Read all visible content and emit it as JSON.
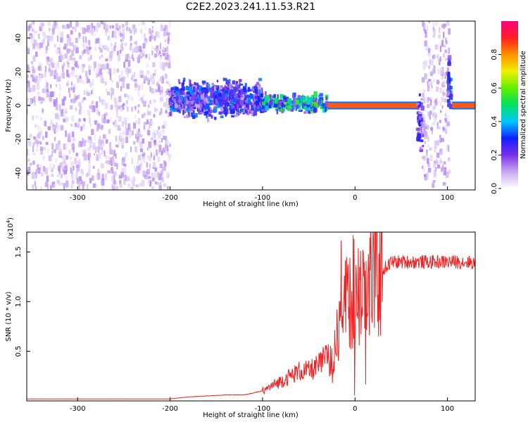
{
  "figure": {
    "title": "C2E2.2023.241.11.53.R21"
  },
  "chart_data": [
    {
      "type": "heatmap",
      "title": "C2E2.2023.241.11.53.R21",
      "xlabel": "Height of straight line (km)",
      "ylabel": "Frequency (Hz)",
      "xlim": [
        -355,
        130
      ],
      "ylim": [
        -50,
        50
      ],
      "x_ticks": [
        -300,
        -200,
        -100,
        0,
        100
      ],
      "x_tick_labels": [
        "-300",
        "-200",
        "-100",
        "0",
        "100"
      ],
      "y_ticks": [
        -40,
        -20,
        0,
        20,
        40
      ],
      "y_tick_labels": [
        "-40",
        "-20",
        "0",
        "20",
        "40"
      ],
      "colorbar": {
        "label": "Normalized spectral amplitude",
        "range": [
          0,
          1
        ],
        "ticks": [
          0.0,
          0.2,
          0.4,
          0.6,
          0.8
        ],
        "tick_labels": [
          "0.0",
          "0.2",
          "0.4",
          "0.6",
          "0.8"
        ],
        "colors": [
          "#ffffff",
          "#c8a8f0",
          "#7a2ee8",
          "#1020ff",
          "#00c8ff",
          "#00e060",
          "#60f000",
          "#f0f000",
          "#ff9000",
          "#ff2020",
          "#ff0080"
        ]
      },
      "regions": [
        {
          "x_range": [
            -355,
            -200
          ],
          "y_range": [
            -50,
            50
          ],
          "amplitude": 0.08,
          "description_level": "noise"
        },
        {
          "x_range": [
            -200,
            -100
          ],
          "y_range": [
            -10,
            18
          ],
          "amplitude": 0.25
        },
        {
          "x_range": [
            -100,
            -30
          ],
          "y_range": [
            -6,
            8
          ],
          "amplitude": 0.4
        },
        {
          "x_range": [
            -30,
            68
          ],
          "y_range": [
            -1.5,
            1.5
          ],
          "amplitude": 0.85
        },
        {
          "x_range": [
            68,
            74
          ],
          "y_range": [
            -32,
            10
          ],
          "amplitude": 0.2
        },
        {
          "x_range": [
            73,
            102
          ],
          "y_range": [
            -50,
            50
          ],
          "amplitude": 0.08
        },
        {
          "x_range": [
            100,
            104
          ],
          "y_range": [
            -10,
            32
          ],
          "amplitude": 0.25
        },
        {
          "x_range": [
            105,
            130
          ],
          "y_range": [
            -1.5,
            1.5
          ],
          "amplitude": 0.85
        }
      ]
    },
    {
      "type": "line",
      "xlabel": "Height of straight line (km)",
      "ylabel": "SNR (10 * v/v)",
      "y_multiplier_label": "(x10",
      "y_multiplier_exp": "4",
      "y_multiplier_close": ")",
      "xlim": [
        -355,
        130
      ],
      "ylim": [
        0,
        1.7
      ],
      "x_ticks": [
        -300,
        -200,
        -100,
        0,
        100
      ],
      "x_tick_labels": [
        "-300",
        "-200",
        "-100",
        "0",
        "100"
      ],
      "y_ticks": [
        0.5,
        1.0,
        1.5
      ],
      "y_tick_labels": [
        "0.5",
        "1.0",
        "1.5"
      ],
      "color": "#ee2222",
      "series": [
        {
          "x": [
            -355,
            -300,
            -250,
            -200,
            -180,
            -160,
            -140,
            -120,
            -100,
            -80,
            -60,
            -50,
            -40,
            -30,
            -25,
            -20,
            -15,
            -10,
            -5,
            0,
            5,
            10,
            15,
            20,
            30,
            40,
            50,
            60,
            80,
            100,
            120,
            130
          ],
          "values": [
            0.02,
            0.02,
            0.02,
            0.02,
            0.04,
            0.05,
            0.06,
            0.06,
            0.1,
            0.2,
            0.3,
            0.3,
            0.35,
            0.45,
            0.35,
            0.8,
            1.05,
            1.2,
            1.05,
            1.1,
            1.15,
            1.2,
            1.2,
            1.25,
            1.32,
            1.4,
            1.4,
            1.4,
            1.4,
            1.4,
            1.4,
            1.39
          ]
        }
      ]
    }
  ]
}
